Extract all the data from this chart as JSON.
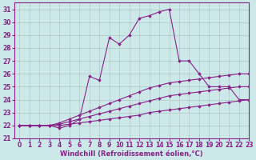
{
  "xlabel": "Windchill (Refroidissement éolien,°C)",
  "background_color": "#cce8e8",
  "grid_color": "#b0c8c8",
  "line_color": "#882288",
  "xlim": [
    -0.5,
    23
  ],
  "ylim": [
    21,
    31.5
  ],
  "xticks": [
    0,
    1,
    2,
    3,
    4,
    5,
    6,
    7,
    8,
    9,
    10,
    11,
    12,
    13,
    14,
    15,
    16,
    17,
    18,
    19,
    20,
    21,
    22,
    23
  ],
  "yticks": [
    21,
    22,
    23,
    24,
    25,
    26,
    27,
    28,
    29,
    30,
    31
  ],
  "lines": [
    {
      "x": [
        0,
        1,
        2,
        3,
        4,
        5,
        6,
        7,
        8,
        9,
        10,
        11,
        12,
        13,
        14,
        15,
        16,
        17,
        18,
        19,
        20,
        21,
        22,
        23
      ],
      "y": [
        22.0,
        22.0,
        22.0,
        22.0,
        22.0,
        22.1,
        22.2,
        22.3,
        22.4,
        22.5,
        22.6,
        22.7,
        22.8,
        23.0,
        23.1,
        23.2,
        23.3,
        23.4,
        23.5,
        23.6,
        23.7,
        23.8,
        23.9,
        24.0
      ]
    },
    {
      "x": [
        0,
        1,
        2,
        3,
        4,
        5,
        6,
        7,
        8,
        9,
        10,
        11,
        12,
        13,
        14,
        15,
        16,
        17,
        18,
        19,
        20,
        21,
        22,
        23
      ],
      "y": [
        22.0,
        22.0,
        22.0,
        22.0,
        22.1,
        22.3,
        22.5,
        22.7,
        22.9,
        23.1,
        23.3,
        23.5,
        23.7,
        23.9,
        24.1,
        24.3,
        24.4,
        24.5,
        24.6,
        24.7,
        24.8,
        24.9,
        25.0,
        25.0
      ]
    },
    {
      "x": [
        0,
        1,
        2,
        3,
        4,
        5,
        6,
        7,
        8,
        9,
        10,
        11,
        12,
        13,
        14,
        15,
        16,
        17,
        18,
        19,
        20,
        21,
        22,
        23
      ],
      "y": [
        22.0,
        22.0,
        22.0,
        22.0,
        22.2,
        22.5,
        22.8,
        23.1,
        23.4,
        23.7,
        24.0,
        24.3,
        24.6,
        24.9,
        25.1,
        25.3,
        25.4,
        25.5,
        25.6,
        25.7,
        25.8,
        25.9,
        26.0,
        26.0
      ]
    },
    {
      "x": [
        0,
        1,
        2,
        3,
        4,
        5,
        6,
        7,
        8,
        9,
        10,
        11,
        12,
        13,
        14,
        15,
        16,
        17,
        18,
        19,
        20,
        21,
        22,
        23
      ],
      "y": [
        22.0,
        22.0,
        22.0,
        22.0,
        21.8,
        22.0,
        22.5,
        25.8,
        25.5,
        28.8,
        28.3,
        29.0,
        30.3,
        30.5,
        30.8,
        31.0,
        27.0,
        27.0,
        26.0,
        25.0,
        25.0,
        25.0,
        24.0,
        24.0
      ]
    }
  ],
  "tick_fontsize": 5.5,
  "label_fontsize": 6,
  "marker": "D",
  "marker_size": 1.8,
  "line_width": 0.8
}
